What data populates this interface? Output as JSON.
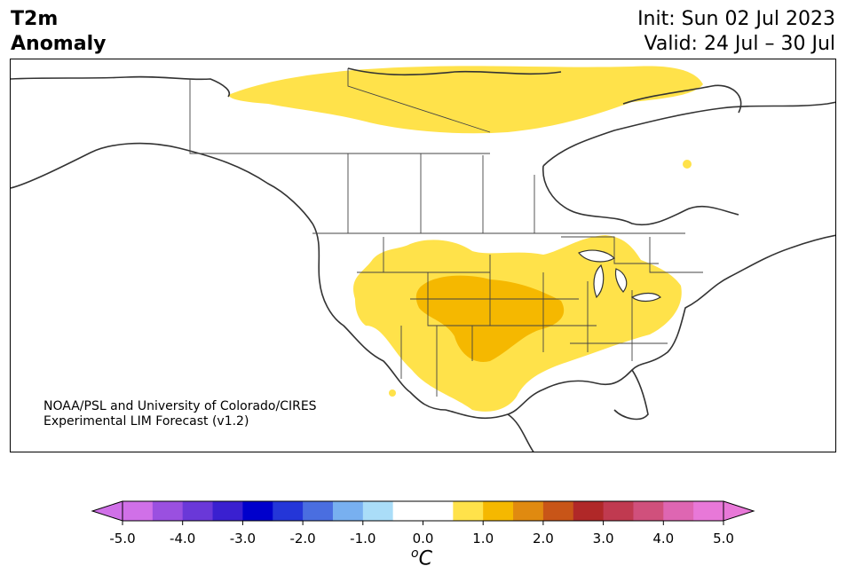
{
  "header": {
    "title_line1": "T2m",
    "title_line2": "Anomaly",
    "init": "Init: Sun 02 Jul 2023",
    "valid": "Valid: 24 Jul – 30 Jul"
  },
  "credit": {
    "line1": "NOAA/PSL and University of Colorado/CIRES",
    "line2": "Experimental LIM Forecast (v1.2)"
  },
  "colorbar": {
    "unit_sup": "o",
    "unit": "C",
    "ticks": [
      "-5.0",
      "-4.0",
      "-3.0",
      "-2.0",
      "-1.0",
      "0.0",
      "1.0",
      "2.0",
      "3.0",
      "4.0",
      "5.0"
    ],
    "colors": [
      "#d070e8",
      "#9a50e0",
      "#6a38d8",
      "#3a20d0",
      "#0000cc",
      "#2436d8",
      "#4a6ee0",
      "#78b0f0",
      "#aaddf8",
      "#ffffff",
      "#ffffff",
      "#ffe24a",
      "#f5b800",
      "#e08a10",
      "#c85518",
      "#b02828",
      "#c03a50",
      "#d0507c",
      "#de66b2",
      "#e878d8"
    ],
    "under_color": "#d070e8",
    "over_color": "#e878d8"
  },
  "map": {
    "anomaly_colors": {
      "light": "#ffe24a",
      "medium": "#f5b800"
    }
  }
}
